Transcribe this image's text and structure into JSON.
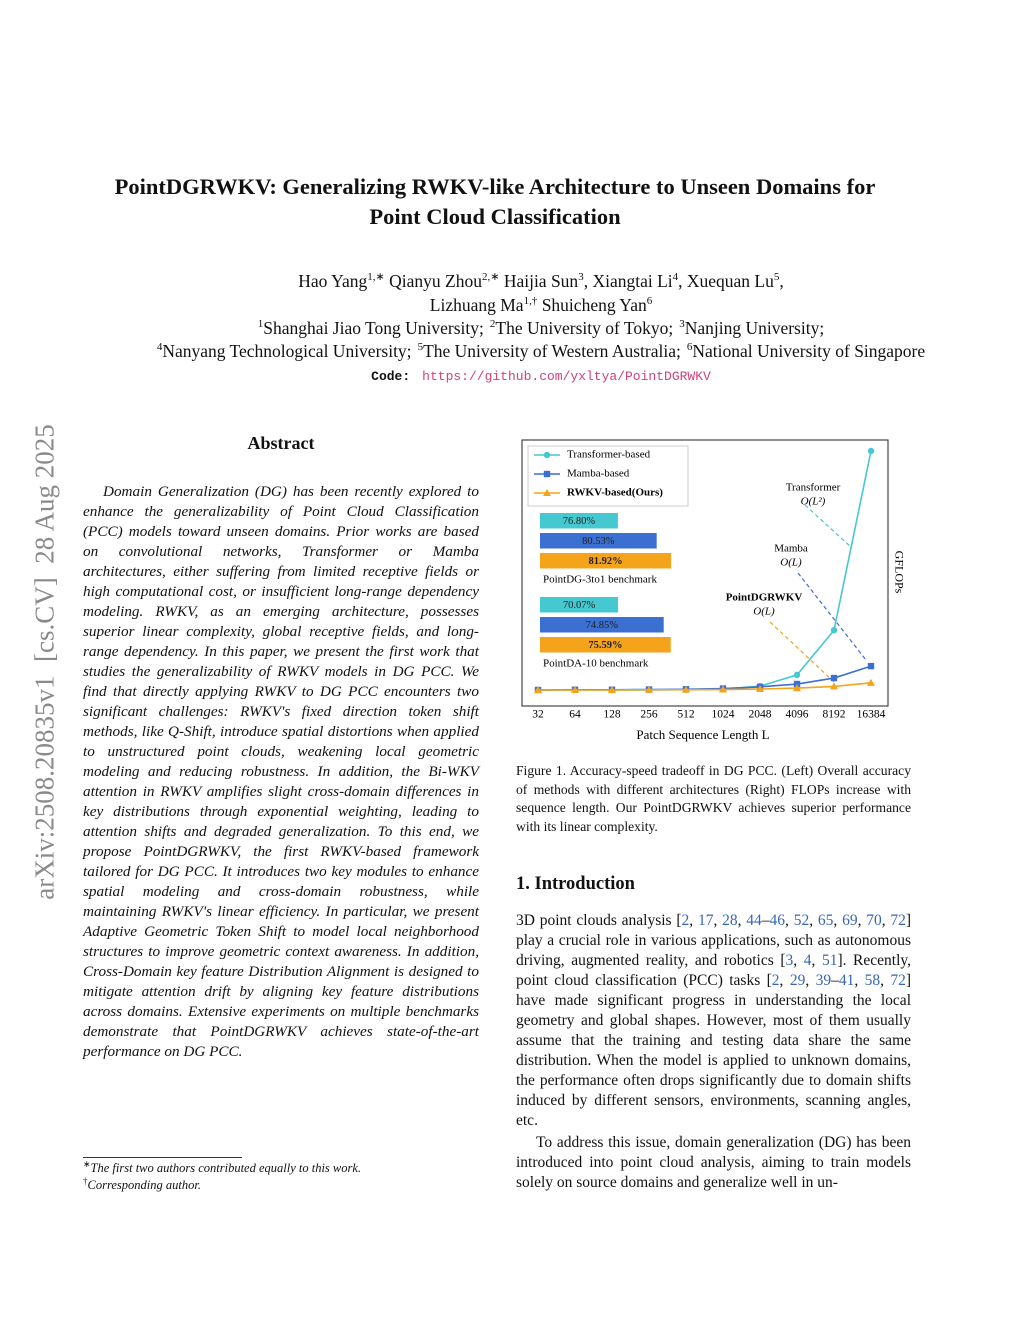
{
  "side_stamp": "arXiv:2508.20835v1  [cs.CV]  28 Aug 2025",
  "title": "PointDGRWKV: Generalizing RWKV-like Architecture to Unseen Domains for Point Cloud Classification",
  "authors": [
    [
      {
        "name": "Hao Yang",
        "sup": "1,∗"
      },
      {
        "name": "Qianyu Zhou",
        "sup": "2,∗"
      },
      {
        "name": "Haijia Sun",
        "sup": "3",
        "after": ","
      },
      {
        "name": "Xiangtai Li",
        "sup": "4",
        "after": ","
      },
      {
        "name": "Xuequan Lu",
        "sup": "5",
        "after": ","
      }
    ],
    [
      {
        "name": "Lizhuang Ma",
        "sup": "1,†"
      },
      {
        "name": "Shuicheng Yan",
        "sup": "6"
      }
    ]
  ],
  "affiliations": [
    [
      {
        "sup": "1",
        "text": "Shanghai Jiao Tong University;"
      },
      {
        "sup": "2",
        "text": "The University of Tokyo;"
      },
      {
        "sup": "3",
        "text": "Nanjing University;"
      }
    ],
    [
      {
        "sup": "4",
        "text": "Nanyang Technological University;"
      },
      {
        "sup": "5",
        "text": "The University of Western Australia;"
      },
      {
        "sup": "6",
        "text": "National University of Singapore"
      }
    ]
  ],
  "code": {
    "label": "Code:",
    "url": "https://github.com/yxltya/PointDGRWKV"
  },
  "abstract": {
    "heading": "Abstract",
    "text": "Domain Generalization (DG) has been recently explored to enhance the generalizability of Point Cloud Classification (PCC) models toward unseen domains. Prior works are based on convolutional networks, Transformer or Mamba architectures, either suffering from limited receptive fields or high computational cost, or insufficient long-range dependency modeling. RWKV, as an emerging architecture, possesses superior linear complexity, global receptive fields, and long-range dependency. In this paper, we present the first work that studies the generalizability of RWKV models in DG PCC. We find that directly applying RWKV to DG PCC encounters two significant challenges: RWKV's fixed direction token shift methods, like Q-Shift, introduce spatial distortions when applied to unstructured point clouds, weakening local geometric modeling and reducing robustness. In addition, the Bi-WKV attention in RWKV amplifies slight cross-domain differences in key distributions through exponential weighting, leading to attention shifts and degraded generalization. To this end, we propose PointDGRWKV, the first RWKV-based framework tailored for DG PCC. It introduces two key modules to enhance spatial modeling and cross-domain robustness, while maintaining RWKV's linear efficiency. In particular, we present Adaptive Geometric Token Shift to model local neighborhood structures to improve geometric context awareness. In addition, Cross-Domain key feature Distribution Alignment is designed to mitigate attention drift by aligning key feature distributions across domains. Extensive experiments on multiple benchmarks demonstrate that PointDGRWKV achieves state-of-the-art performance on DG PCC."
  },
  "footnotes": [
    {
      "mark": "∗",
      "text": "The first two authors contributed equally to this work."
    },
    {
      "mark": "†",
      "text": "Corresponding author."
    }
  ],
  "chart_data": {
    "type": "line",
    "categories": [
      "32",
      "64",
      "128",
      "256",
      "512",
      "1024",
      "2048",
      "4096",
      "8192",
      "16384"
    ],
    "series": [
      {
        "name": "Transformer-based",
        "color": "#46c8d0",
        "marker": "circle",
        "values": [
          0,
          0,
          0,
          0,
          0.1,
          0.4,
          1.6,
          6.3,
          25,
          100
        ]
      },
      {
        "name": "Mamba-based",
        "color": "#3b6fd1",
        "marker": "square",
        "values": [
          0,
          0.1,
          0.1,
          0.2,
          0.3,
          0.6,
          1.3,
          2.5,
          5,
          10
        ]
      },
      {
        "name": "RWKV-based(Ours)",
        "color": "#f5a31a",
        "marker": "triangle",
        "values": [
          0,
          0,
          0,
          0.1,
          0.1,
          0.2,
          0.4,
          0.8,
          1.5,
          3
        ]
      }
    ],
    "ylim": [
      0,
      100
    ],
    "x_label": "Patch Sequence Length L",
    "y_label": "GFLOPs",
    "annotations": [
      {
        "text": "Transformer",
        "complexity": "O(L²)"
      },
      {
        "text": "Mamba",
        "complexity": "O(L)"
      },
      {
        "text": "PointDGRWKV",
        "complexity": "O(L)"
      }
    ],
    "bar_groups": [
      {
        "label": "PointDG-3to1 benchmark",
        "xlim": [
          69.3,
          84.7
        ],
        "values": [
          76.8,
          80.53,
          81.92
        ],
        "value_labels": [
          "76.80%",
          "80.53%",
          "81.92%"
        ]
      },
      {
        "label": "PointDA-10 benchmark",
        "xlim": [
          61.9,
          78.65
        ],
        "values": [
          70.07,
          74.85,
          75.59
        ],
        "value_labels": [
          "70.07%",
          "74.85%",
          "75.59%"
        ]
      }
    ]
  },
  "caption": "Figure 1. Accuracy-speed tradeoff in DG PCC. (Left) Overall accuracy of methods with different architectures (Right) FLOPs increase with sequence length. Our PointDGRWKV achieves superior performance with its linear complexity.",
  "intro": {
    "heading": "1. Introduction",
    "paragraphs": [
      {
        "runs": [
          "3D point clouds analysis [",
          "2",
          ", ",
          "17",
          ", ",
          "28",
          ", ",
          "44",
          "–",
          "46",
          ", ",
          "52",
          ", ",
          "65",
          ", ",
          "69",
          ", ",
          "70",
          ", ",
          "72",
          "] play a crucial role in various applications, such as autonomous driving, augmented reality, and robotics [",
          "3",
          ", ",
          "4",
          ", ",
          "51",
          "].  Recently, point cloud classification (PCC) tasks [",
          "2",
          ", ",
          "29",
          ", ",
          "39",
          "–",
          "41",
          ", ",
          "58",
          ", ",
          "72",
          "] have made significant progress in understanding the local geometry and global shapes.  However, most of them usually assume that the training and testing data share the same distribution. When the model is applied to unknown domains, the performance often drops significantly due to domain shifts induced by different sensors, environments, scanning angles, etc."
        ]
      },
      {
        "runs": [
          "To address this issue, domain generalization (DG) has been introduced into point cloud analysis, aiming to train models solely on source domains and generalize well in un-"
        ]
      }
    ]
  }
}
